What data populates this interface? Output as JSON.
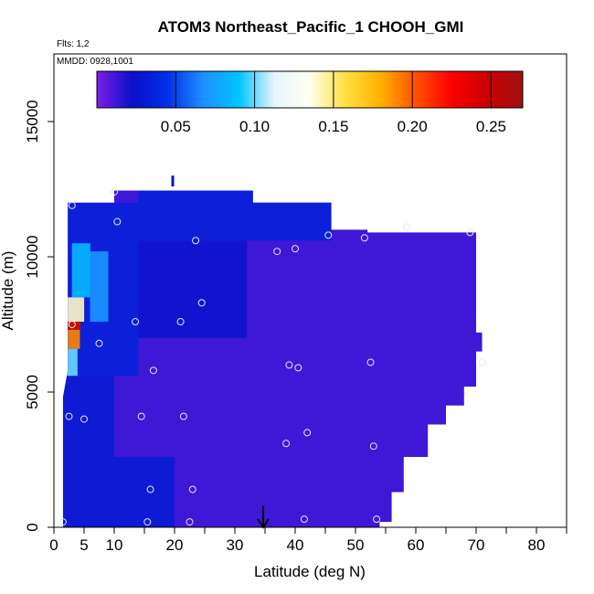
{
  "chart_data": {
    "type": "heatmap",
    "title": "ATOM3 Northeast_Pacific_1 CHOOH_GMI",
    "subtitle_lines": [
      "Flts: 1,2",
      "MMDD: 0928,1001"
    ],
    "xlabel": "Latitude (deg N)",
    "ylabel": "Altitude (m)",
    "xlim": [
      0,
      85
    ],
    "ylim": [
      0,
      17500
    ],
    "x_ticks": [
      0,
      5,
      10,
      20,
      30,
      40,
      50,
      60,
      70,
      80
    ],
    "x_minor_ticks": [
      15,
      25,
      35,
      45,
      55,
      65,
      75,
      85
    ],
    "y_ticks": [
      0,
      5000,
      10000,
      15000
    ],
    "colorbar": {
      "min": 0,
      "max": 0.27,
      "ticks": [
        0.05,
        0.1,
        0.15,
        0.2,
        0.25
      ],
      "tick_labels": [
        "0.05",
        "0.10",
        "0.15",
        "0.20",
        "0.25"
      ],
      "colors": [
        "#7a1ee8",
        "#0a10c8",
        "#0030e8",
        "#1e90ff",
        "#00c4ff",
        "#e8f4ff",
        "#fffff0",
        "#ffe040",
        "#ffb000",
        "#ff5000",
        "#ff0000",
        "#c80000",
        "#a01010"
      ]
    },
    "domain_outline": [
      [
        1.5,
        0
      ],
      [
        1.5,
        4800
      ],
      [
        2.3,
        5800
      ],
      [
        2.3,
        12000
      ],
      [
        10,
        12000
      ],
      [
        10,
        12450
      ],
      [
        33,
        12450
      ],
      [
        33,
        12000
      ],
      [
        46,
        12000
      ],
      [
        46,
        11000
      ],
      [
        52,
        11000
      ],
      [
        52,
        10900
      ],
      [
        70,
        10900
      ],
      [
        70,
        7200
      ],
      [
        71,
        7200
      ],
      [
        71,
        6500
      ],
      [
        70,
        6500
      ],
      [
        70,
        5200
      ],
      [
        68,
        5200
      ],
      [
        68,
        4500
      ],
      [
        65,
        4500
      ],
      [
        65,
        3800
      ],
      [
        62,
        3800
      ],
      [
        62,
        2600
      ],
      [
        58,
        2600
      ],
      [
        58,
        1300
      ],
      [
        56,
        1300
      ],
      [
        56,
        200
      ],
      [
        54,
        200
      ],
      [
        54,
        0
      ]
    ],
    "gradient_bands": [
      {
        "lat_start": 1.5,
        "lat_end": 10,
        "alt_start": 0,
        "alt_end": 5600,
        "value": 0.03
      },
      {
        "lat_start": 10,
        "lat_end": 20,
        "alt_start": 0,
        "alt_end": 2600,
        "value": 0.03
      },
      {
        "lat_start": 1.5,
        "lat_end": 14,
        "alt_start": 5600,
        "alt_end": 12000,
        "value": 0.035
      },
      {
        "lat_start": 14,
        "lat_end": 46,
        "alt_start": 10600,
        "alt_end": 12450,
        "value": 0.035
      },
      {
        "lat_start": 14,
        "lat_end": 32,
        "alt_start": 7000,
        "alt_end": 10600,
        "value": 0.025
      }
    ],
    "hotspots": [
      {
        "lat": 2.4,
        "alt_start": 5600,
        "alt_end": 6600,
        "value": 0.1
      },
      {
        "lat": 2.8,
        "alt_start": 6600,
        "alt_end": 7600,
        "value": 0.19
      },
      {
        "lat": 2.9,
        "alt_start": 7300,
        "alt_end": 7700,
        "value": 0.25
      },
      {
        "lat": 3.5,
        "alt_start": 7600,
        "alt_end": 8500,
        "value": 0.14
      },
      {
        "lat": 4.5,
        "alt_start": 8500,
        "alt_end": 10500,
        "value": 0.085
      },
      {
        "lat": 7.5,
        "alt_start": 7600,
        "alt_end": 10200,
        "value": 0.07
      }
    ],
    "samples": [
      {
        "lat": 1.5,
        "alt": 200
      },
      {
        "lat": 2.5,
        "alt": 4100
      },
      {
        "lat": 3,
        "alt": 7500
      },
      {
        "lat": 3,
        "alt": 11900
      },
      {
        "lat": 5,
        "alt": 4000
      },
      {
        "lat": 7.5,
        "alt": 6800
      },
      {
        "lat": 10,
        "alt": 12400
      },
      {
        "lat": 10.5,
        "alt": 11300
      },
      {
        "lat": 13.5,
        "alt": 7600
      },
      {
        "lat": 14.5,
        "alt": 4100
      },
      {
        "lat": 15.5,
        "alt": 200
      },
      {
        "lat": 16,
        "alt": 1400
      },
      {
        "lat": 16.5,
        "alt": 5800
      },
      {
        "lat": 21,
        "alt": 7600
      },
      {
        "lat": 21.5,
        "alt": 4100
      },
      {
        "lat": 22.5,
        "alt": 200
      },
      {
        "lat": 23,
        "alt": 1400
      },
      {
        "lat": 23.5,
        "alt": 10600
      },
      {
        "lat": 24.5,
        "alt": 8300
      },
      {
        "lat": 37,
        "alt": 10200
      },
      {
        "lat": 38.5,
        "alt": 3100
      },
      {
        "lat": 39,
        "alt": 6000
      },
      {
        "lat": 40,
        "alt": 10300
      },
      {
        "lat": 40.5,
        "alt": 5900
      },
      {
        "lat": 41.5,
        "alt": 300
      },
      {
        "lat": 42,
        "alt": 3500
      },
      {
        "lat": 45.5,
        "alt": 10800
      },
      {
        "lat": 51.5,
        "alt": 10700
      },
      {
        "lat": 52.5,
        "alt": 6100
      },
      {
        "lat": 53,
        "alt": 3000
      },
      {
        "lat": 53.5,
        "alt": 300
      },
      {
        "lat": 58.5,
        "alt": 11100
      },
      {
        "lat": 69,
        "alt": 10900
      },
      {
        "lat": 71,
        "alt": 6100
      }
    ],
    "markers": [
      {
        "lat": 34.7,
        "alt_start": 800,
        "alt_end": 0,
        "kind": "arrow"
      },
      {
        "lat": 19.7,
        "alt_start": 13000,
        "alt_end": 12600,
        "kind": "tick"
      }
    ]
  }
}
